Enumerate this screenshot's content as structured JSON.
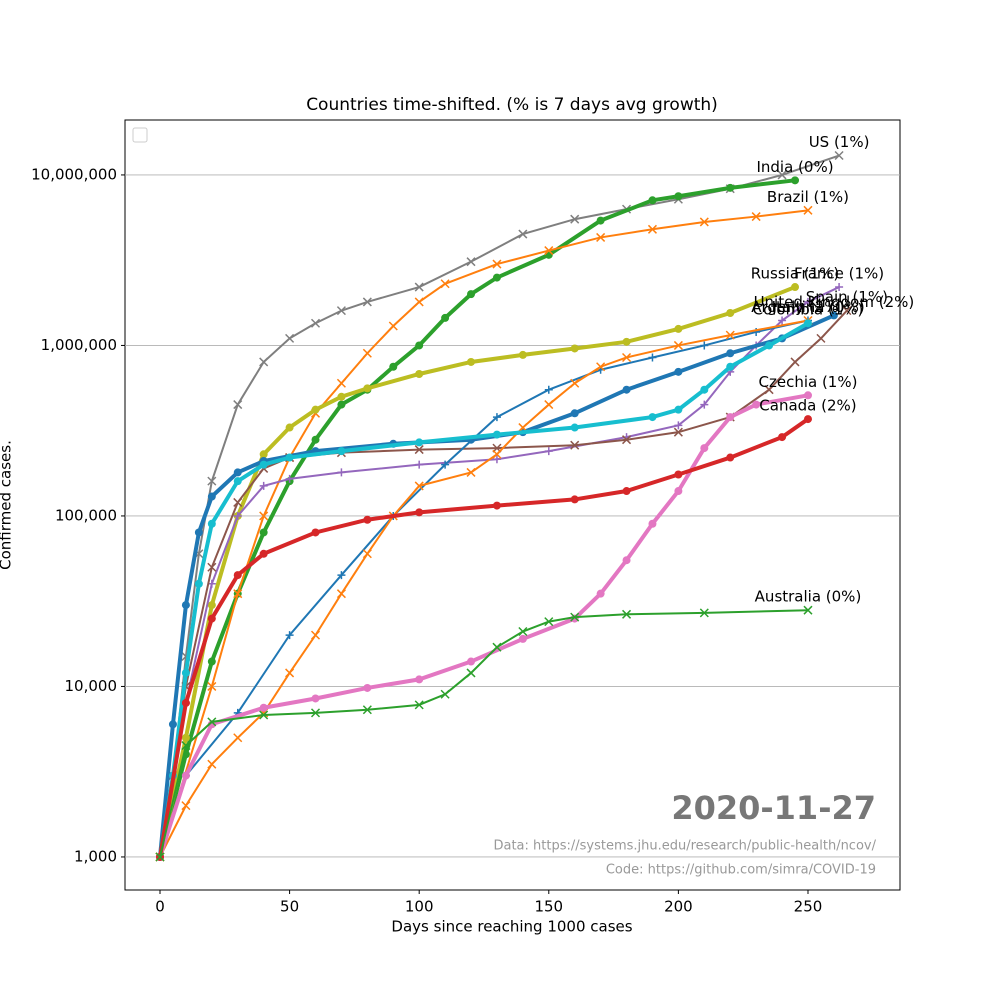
{
  "chart_data": {
    "type": "line",
    "title": "Countries time-shifted. (% is 7 days avg growth)",
    "x_label": "Days since reaching 1000 cases",
    "y_label": "Confirmed cases.",
    "annotations": [
      "2020-11-27",
      "Data: https://systems.jhu.edu/research/public-health/ncov/",
      "Code: https://github.com/simra/COVID-19"
    ],
    "log_y": true,
    "grid": "y",
    "xlim": [
      -13.5,
      285.5
    ],
    "ylim": [
      640,
      21000000
    ],
    "xticks": [
      0,
      50,
      100,
      150,
      200,
      250
    ],
    "yticks": [
      {
        "value": 1000,
        "label": "1,000"
      },
      {
        "value": 10000,
        "label": "10,000"
      },
      {
        "value": 100000,
        "label": "100,000"
      },
      {
        "value": 1000000,
        "label": "1,000,000"
      },
      {
        "value": 10000000,
        "label": "10,000,000"
      }
    ],
    "series": [
      {
        "name": "US (1%)",
        "color": "#7f7f7f",
        "marker": "x",
        "x": [
          0,
          5,
          10,
          15,
          20,
          30,
          40,
          50,
          60,
          70,
          80,
          100,
          120,
          140,
          160,
          180,
          200,
          220,
          240,
          262
        ],
        "values": [
          1000,
          3000,
          15000,
          60000,
          160000,
          450000,
          800000,
          1100000,
          1350000,
          1600000,
          1800000,
          2200000,
          3100000,
          4500000,
          5500000,
          6300000,
          7200000,
          8300000,
          10000000,
          13000000
        ]
      },
      {
        "name": "India (0%)",
        "color": "#2ca02c",
        "marker": "o",
        "x": [
          0,
          10,
          20,
          30,
          40,
          50,
          60,
          70,
          80,
          90,
          100,
          110,
          120,
          130,
          150,
          170,
          190,
          200,
          220,
          245
        ],
        "values": [
          1000,
          4000,
          14000,
          35000,
          80000,
          160000,
          280000,
          450000,
          550000,
          750000,
          1000000,
          1450000,
          2000000,
          2500000,
          3400000,
          5400000,
          7100000,
          7500000,
          8400000,
          9300000
        ]
      },
      {
        "name": "Brazil (1%)",
        "color": "#ff7f0e",
        "marker": "x",
        "x": [
          0,
          20,
          30,
          40,
          50,
          60,
          70,
          80,
          90,
          100,
          110,
          130,
          150,
          170,
          190,
          210,
          230,
          250
        ],
        "values": [
          1000,
          10000,
          35000,
          100000,
          220000,
          400000,
          600000,
          900000,
          1300000,
          1800000,
          2300000,
          3000000,
          3600000,
          4300000,
          4800000,
          5300000,
          5700000,
          6200000
        ]
      },
      {
        "name": "Russia (1%)",
        "color": "#bcbd22",
        "marker": "o",
        "x": [
          0,
          10,
          20,
          30,
          40,
          50,
          60,
          70,
          80,
          100,
          120,
          140,
          160,
          180,
          200,
          220,
          245
        ],
        "values": [
          1000,
          5000,
          30000,
          100000,
          230000,
          330000,
          420000,
          500000,
          560000,
          680000,
          800000,
          880000,
          960000,
          1050000,
          1250000,
          1550000,
          2200000
        ]
      },
      {
        "name": "France (1%)",
        "color": "#9467bd",
        "marker": "+",
        "x": [
          0,
          10,
          20,
          30,
          40,
          50,
          70,
          100,
          130,
          150,
          180,
          200,
          210,
          220,
          230,
          240,
          250,
          262
        ],
        "values": [
          1000,
          8000,
          40000,
          100000,
          150000,
          165000,
          180000,
          200000,
          215000,
          240000,
          290000,
          340000,
          450000,
          700000,
          1000000,
          1400000,
          1800000,
          2200000
        ]
      },
      {
        "name": "Spain (1%)",
        "color": "#8c564b",
        "marker": "x",
        "x": [
          0,
          10,
          20,
          30,
          40,
          50,
          70,
          100,
          130,
          160,
          180,
          200,
          220,
          235,
          245,
          255,
          265
        ],
        "values": [
          1000,
          10000,
          50000,
          120000,
          190000,
          220000,
          235000,
          245000,
          250000,
          260000,
          280000,
          310000,
          380000,
          550000,
          800000,
          1100000,
          1600000
        ]
      },
      {
        "name": "United Kingdom (2%)",
        "color": "#1f77b4",
        "marker": "o",
        "x": [
          0,
          5,
          10,
          15,
          20,
          30,
          40,
          60,
          90,
          120,
          140,
          160,
          180,
          200,
          220,
          240,
          260
        ],
        "values": [
          1000,
          6000,
          30000,
          80000,
          130000,
          180000,
          210000,
          240000,
          265000,
          280000,
          310000,
          400000,
          550000,
          700000,
          900000,
          1100000,
          1500000
        ]
      },
      {
        "name": "Italy (2%)",
        "color": "#1f77b4",
        "marker": "+",
        "x": [
          0,
          10,
          30,
          50,
          70,
          90,
          110,
          130,
          150,
          170,
          190,
          210,
          230,
          250
        ],
        "values": [
          1000,
          3000,
          7000,
          20000,
          45000,
          100000,
          200000,
          380000,
          550000,
          720000,
          850000,
          1000000,
          1200000,
          1400000
        ]
      },
      {
        "name": "Argentina (0%)",
        "color": "#ff7f0e",
        "marker": "x",
        "x": [
          0,
          10,
          20,
          30,
          40,
          50,
          60,
          70,
          80,
          90,
          100,
          120,
          130,
          140,
          150,
          160,
          170,
          180,
          200,
          220,
          250
        ],
        "values": [
          1000,
          2000,
          3500,
          5000,
          7000,
          12000,
          20000,
          35000,
          60000,
          100000,
          150000,
          180000,
          230000,
          330000,
          450000,
          600000,
          750000,
          850000,
          1000000,
          1150000,
          1400000
        ]
      },
      {
        "name": "Colombia (1%)",
        "color": "#17becf",
        "marker": "o",
        "x": [
          0,
          5,
          10,
          15,
          20,
          30,
          40,
          50,
          70,
          100,
          130,
          160,
          190,
          200,
          210,
          220,
          235,
          250
        ],
        "values": [
          1000,
          3000,
          12000,
          40000,
          90000,
          160000,
          200000,
          220000,
          240000,
          270000,
          300000,
          330000,
          380000,
          420000,
          550000,
          750000,
          1000000,
          1350000
        ]
      },
      {
        "name": "Czechia (1%)",
        "color": "#e377c2",
        "marker": "o",
        "x": [
          0,
          10,
          20,
          40,
          60,
          80,
          100,
          120,
          140,
          160,
          170,
          180,
          190,
          200,
          210,
          220,
          230,
          250
        ],
        "values": [
          1000,
          3000,
          6000,
          7500,
          8500,
          9800,
          11000,
          14000,
          19000,
          25000,
          35000,
          55000,
          90000,
          140000,
          250000,
          380000,
          450000,
          510000
        ]
      },
      {
        "name": "Canada (2%)",
        "color": "#d62728",
        "marker": "o",
        "x": [
          0,
          10,
          20,
          30,
          40,
          60,
          80,
          100,
          130,
          160,
          180,
          200,
          220,
          240,
          250
        ],
        "values": [
          1000,
          8000,
          25000,
          45000,
          60000,
          80000,
          95000,
          105000,
          115000,
          125000,
          140000,
          175000,
          220000,
          290000,
          370000
        ]
      },
      {
        "name": "Australia (0%)",
        "color": "#2ca02c",
        "marker": "x",
        "x": [
          0,
          10,
          20,
          40,
          60,
          80,
          100,
          110,
          120,
          130,
          140,
          150,
          160,
          180,
          210,
          250
        ],
        "values": [
          1000,
          4500,
          6200,
          6800,
          7000,
          7300,
          7800,
          9000,
          12000,
          17000,
          21000,
          24000,
          25500,
          26500,
          27000,
          28000
        ]
      }
    ]
  }
}
